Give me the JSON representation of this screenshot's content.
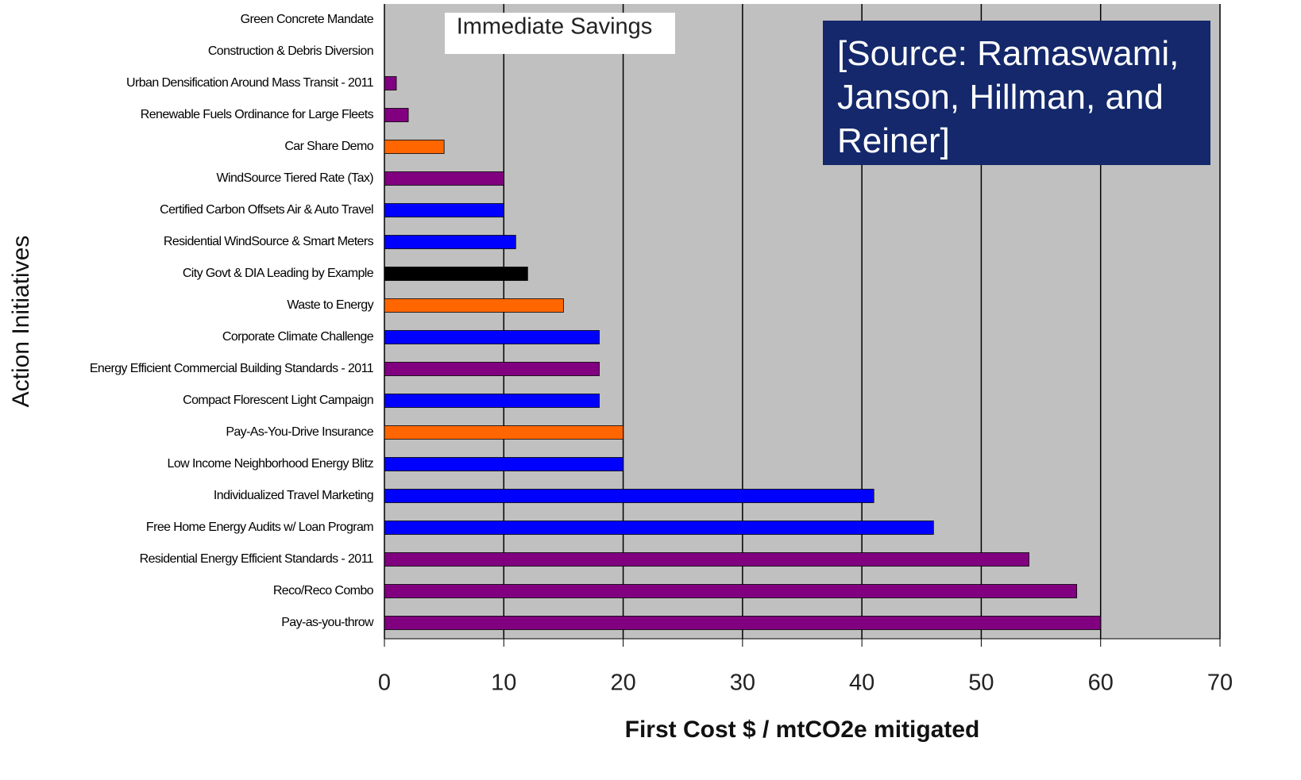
{
  "chart_data": {
    "type": "bar",
    "orientation": "horizontal",
    "annotations": [
      "Immediate Savings",
      "[Source: Ramaswami, Janson, Hillman, and Reiner]"
    ],
    "xlabel": "First Cost $ / mtCO2e mitigated",
    "ylabel": "Action Initiatives",
    "categories": [
      "Green Concrete Mandate",
      "Construction & Debris Diversion",
      "Urban Densification Around Mass Transit - 2011",
      "Renewable Fuels Ordinance for Large Fleets",
      "Car Share Demo",
      "WindSource Tiered Rate (Tax)",
      "Certified Carbon Offsets Air & Auto Travel",
      "Residential WindSource & Smart Meters",
      "City Govt & DIA Leading by Example",
      "Waste to Energy",
      "Corporate Climate Challenge",
      "Energy Efficient Commercial Building Standards - 2011",
      "Compact Florescent Light Campaign",
      "Pay-As-You-Drive Insurance",
      "Low Income Neighborhood Energy Blitz",
      "Individualized Travel Marketing",
      "Free Home Energy Audits w/ Loan Program",
      "Residential Energy Efficient Standards - 2011",
      "Reco/Reco Combo",
      "Pay-as-you-throw"
    ],
    "values": [
      0,
      0,
      1,
      2,
      5,
      10,
      10,
      11,
      12,
      15,
      18,
      18,
      18,
      20,
      20,
      41,
      46,
      54,
      58,
      60
    ],
    "colors": [
      "#800080",
      "#800080",
      "#800080",
      "#800080",
      "#ff6600",
      "#800080",
      "#0000ff",
      "#0000ff",
      "#000000",
      "#ff6600",
      "#0000ff",
      "#800080",
      "#0000ff",
      "#ff6600",
      "#0000ff",
      "#0000ff",
      "#0000ff",
      "#800080",
      "#800080",
      "#800080"
    ],
    "xlim": [
      0,
      70
    ],
    "xticks": [
      0,
      10,
      20,
      30,
      40,
      50,
      60,
      70
    ],
    "grid": true
  }
}
